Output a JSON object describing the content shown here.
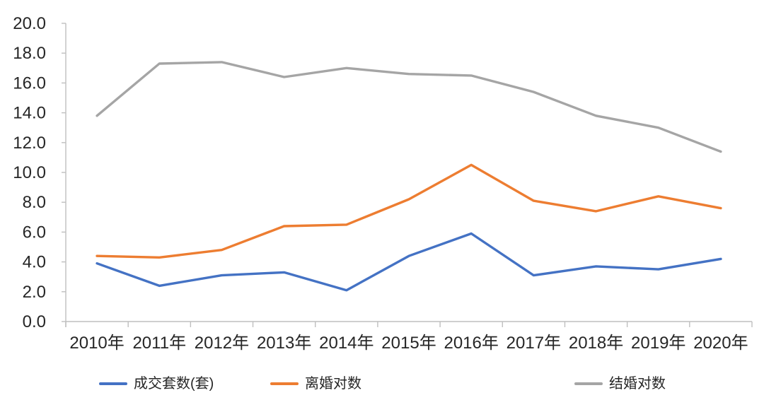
{
  "chart_data": {
    "type": "line",
    "title": "",
    "xlabel": "",
    "ylabel": "",
    "categories": [
      "2010年",
      "2011年",
      "2012年",
      "2013年",
      "2014年",
      "2015年",
      "2016年",
      "2017年",
      "2018年",
      "2019年",
      "2020年"
    ],
    "series": [
      {
        "name": "成交套数(套)",
        "color": "#4472C4",
        "values": [
          3.9,
          2.4,
          3.1,
          3.3,
          2.1,
          4.4,
          5.9,
          3.1,
          3.7,
          3.5,
          4.2
        ]
      },
      {
        "name": "离婚对数",
        "color": "#ED7D31",
        "values": [
          4.4,
          4.3,
          4.8,
          6.4,
          6.5,
          8.2,
          10.5,
          8.1,
          7.4,
          8.4,
          7.6
        ]
      },
      {
        "name": "结婚对数",
        "color": "#A5A5A5",
        "values": [
          13.8,
          17.3,
          17.4,
          16.4,
          17.0,
          16.6,
          16.5,
          15.4,
          13.8,
          13.0,
          11.4
        ]
      }
    ],
    "ylim": [
      0,
      20
    ],
    "ytick_step": 2,
    "ytick_labels": [
      "0.0",
      "2.0",
      "4.0",
      "6.0",
      "8.0",
      "10.0",
      "12.0",
      "14.0",
      "16.0",
      "18.0",
      "20.0"
    ],
    "grid": false,
    "legend_position": "bottom",
    "axis_color": "#BFBFBF",
    "text_color": "#262626"
  }
}
